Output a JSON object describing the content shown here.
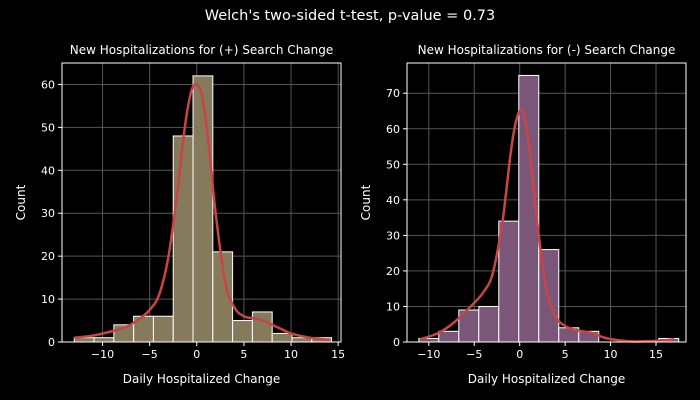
{
  "suptitle": "Welch's two-sided t-test, p-value = 0.73",
  "colors": {
    "background": "#000000",
    "axes_edge": "#ffffff",
    "grid": "#555555",
    "kde": "#c94545",
    "bar_edge": "#ffffff"
  },
  "chart_data": [
    {
      "type": "bar",
      "title": "New Hospitalizations for (+) Search Change",
      "xlabel": "Daily Hospitalized Change",
      "ylabel": "Count",
      "xlim": [
        -14.3,
        15.3
      ],
      "ylim": [
        0,
        65
      ],
      "xticks": [
        -10,
        -5,
        0,
        5,
        10,
        15
      ],
      "xtick_labels": [
        "−10",
        "−5",
        "0",
        "5",
        "10",
        "15"
      ],
      "yticks": [
        0,
        10,
        20,
        30,
        40,
        50,
        60
      ],
      "ytick_labels": [
        "0",
        "10",
        "20",
        "30",
        "40",
        "50",
        "60"
      ],
      "grid": true,
      "bar_color": "#857a5c",
      "bin_edges": [
        -13,
        -10.9,
        -8.8,
        -6.7,
        -4.6,
        -2.5,
        -0.4,
        1.7,
        3.8,
        5.9,
        8.0,
        10.1,
        12.2,
        14.3
      ],
      "values": [
        1,
        1,
        4,
        6,
        6,
        48,
        62,
        21,
        5,
        7,
        2,
        1,
        1
      ],
      "kde": {
        "x": [
          -13,
          -11,
          -9,
          -7.5,
          -6,
          -5,
          -4,
          -3,
          -2,
          -1.5,
          -1,
          -0.5,
          0,
          0.5,
          1,
          1.5,
          2,
          3,
          4,
          5,
          6,
          7,
          8,
          9,
          10,
          12,
          14
        ],
        "y": [
          1,
          1.5,
          2.5,
          3.5,
          5.5,
          7.5,
          11,
          20,
          36,
          46,
          54,
          59,
          60,
          58,
          51,
          41,
          30,
          14,
          8,
          6,
          5.5,
          5,
          4,
          3,
          2,
          1,
          0.5
        ]
      }
    },
    {
      "type": "bar",
      "title": "New Hospitalizations for (-) Search Change",
      "xlabel": "Daily Hospitalized Change",
      "ylabel": "Count",
      "xlim": [
        -12.4,
        18.3
      ],
      "ylim": [
        0,
        78.5
      ],
      "xticks": [
        -10,
        -5,
        0,
        5,
        10,
        15
      ],
      "xtick_labels": [
        "−10",
        "−5",
        "0",
        "5",
        "10",
        "15"
      ],
      "yticks": [
        0,
        10,
        20,
        30,
        40,
        50,
        60,
        70
      ],
      "ytick_labels": [
        "0",
        "10",
        "20",
        "30",
        "40",
        "50",
        "60",
        "70"
      ],
      "grid": true,
      "bar_color": "#7a5679",
      "bin_edges": [
        -11.1,
        -8.9,
        -6.7,
        -4.5,
        -2.3,
        -0.1,
        2.1,
        4.3,
        6.5,
        8.7,
        10.9,
        13.1,
        15.3,
        17.5
      ],
      "values": [
        1,
        3,
        9,
        10,
        34,
        75,
        26,
        4,
        3,
        0,
        0,
        0,
        1
      ],
      "kde": {
        "x": [
          -11,
          -10,
          -9,
          -8,
          -7,
          -6,
          -5,
          -4,
          -3,
          -2,
          -1.5,
          -1,
          -0.5,
          0,
          0.5,
          1,
          1.5,
          2,
          3,
          4,
          5,
          6,
          7,
          8,
          9,
          10,
          12,
          14,
          16,
          17
        ],
        "y": [
          0.8,
          1.5,
          2.5,
          4,
          6,
          8.5,
          11,
          14,
          19,
          32,
          42,
          53,
          61,
          65,
          64,
          56,
          44,
          32,
          14,
          7,
          4.5,
          3.5,
          3,
          2.5,
          1.5,
          0.8,
          0.2,
          0.2,
          0.5,
          0.8
        ]
      }
    }
  ]
}
